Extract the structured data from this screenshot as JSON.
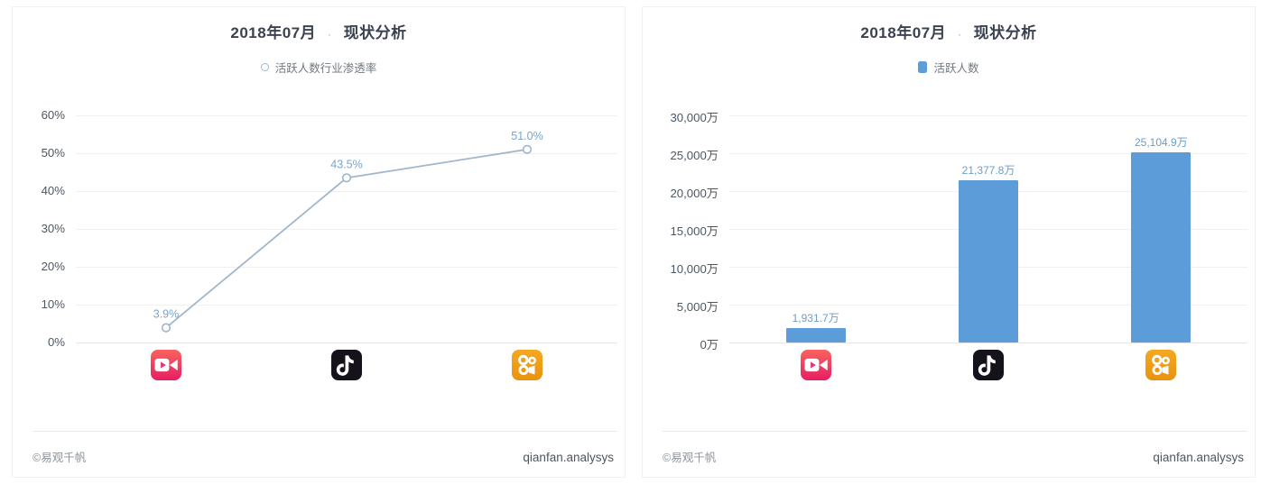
{
  "chart_data": [
    {
      "type": "line",
      "title": "2018年07月 · 现状分析",
      "title_parts": {
        "left": "2018年07月",
        "sep": "·",
        "right": "现状分析"
      },
      "legend": {
        "label": "活跃人数行业渗透率",
        "marker": "circle-outline",
        "position": "top"
      },
      "categories": [
        "美拍",
        "抖音短视频",
        "快手"
      ],
      "category_ids": [
        "meipai",
        "douyin",
        "kuaishou"
      ],
      "category_icons": [
        "meipai-icon",
        "douyin-icon",
        "kuaishou-icon"
      ],
      "values": [
        3.9,
        43.5,
        51.0
      ],
      "value_labels": [
        "3.9%",
        "43.5%",
        "51.0%"
      ],
      "ylabel": "",
      "ylim": [
        0,
        60
      ],
      "ytick_labels": [
        "0%",
        "10%",
        "20%",
        "30%",
        "40%",
        "50%",
        "60%"
      ],
      "grid": true,
      "footer": {
        "left": "©易观千帆",
        "right": "qianfan.analysys"
      }
    },
    {
      "type": "bar",
      "title": "2018年07月 · 现状分析",
      "title_parts": {
        "left": "2018年07月",
        "sep": "·",
        "right": "现状分析"
      },
      "legend": {
        "label": "活跃人数",
        "marker": "square",
        "position": "top"
      },
      "categories": [
        "美拍",
        "抖音短视频",
        "快手"
      ],
      "category_ids": [
        "meipai",
        "douyin",
        "kuaishou"
      ],
      "category_icons": [
        "meipai-icon",
        "douyin-icon",
        "kuaishou-icon"
      ],
      "values": [
        1931.7,
        21377.8,
        25104.9
      ],
      "value_labels": [
        "1,931.7万",
        "21,377.8万",
        "25,104.9万"
      ],
      "ylabel": "",
      "ylim": [
        0,
        30000
      ],
      "ytick_labels": [
        "0万",
        "5,000万",
        "10,000万",
        "15,000万",
        "20,000万",
        "25,000万",
        "30,000万"
      ],
      "grid": true,
      "footer": {
        "left": "©易观千帆",
        "right": "qianfan.analysys"
      }
    }
  ],
  "colors": {
    "bar": "#5B9CD9",
    "line": "#A2B6CC",
    "marker_stroke": "#9DB4CC",
    "marker_fill": "#ffffff",
    "value_label_line": "#7AA4CB",
    "value_label_bar": "#6C9CC9",
    "axis_label": "#4d5762",
    "grid": "#f0f0f0",
    "title": "#3a4150",
    "legend_text": "#72787f",
    "legend_square": "#5B9CD9",
    "footer_left": "#8d939b",
    "footer_right": "#4f565e",
    "meipai_gradient_top": "#F8635F",
    "meipai_gradient_bottom": "#E81E63",
    "douyin_bg": "#16121B",
    "kuaishou_gradient_top": "#F5A81F",
    "kuaishou_gradient_bottom": "#E89310"
  }
}
